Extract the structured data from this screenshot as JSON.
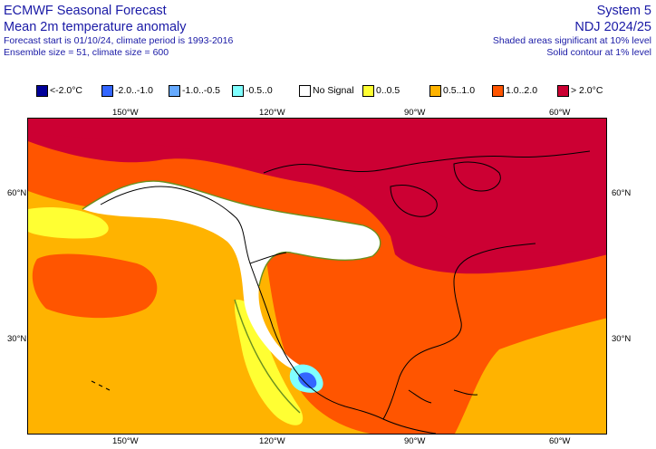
{
  "header": {
    "title": "ECMWF Seasonal Forecast",
    "subtitle": "Mean 2m temperature anomaly",
    "info_line1": "Forecast start is 01/10/24, climate period is 1993-2016",
    "info_line2": "Ensemble size = 51, climate size = 600",
    "system": "System 5",
    "season": "NDJ 2024/25",
    "sig_note1": "Shaded areas significant at 10% level",
    "sig_note2": "Solid contour at 1% level"
  },
  "legend": [
    {
      "label": "<-2.0°C",
      "color": "#000099"
    },
    {
      "label": "-2.0..-1.0",
      "color": "#3366ff"
    },
    {
      "label": "-1.0..-0.5",
      "color": "#66aaff"
    },
    {
      "label": "-0.5..0",
      "color": "#80ffff"
    },
    {
      "label": "No Signal",
      "color": "#ffffff"
    },
    {
      "label": "0..0.5",
      "color": "#ffff33"
    },
    {
      "label": "0.5..1.0",
      "color": "#ffb300"
    },
    {
      "label": "1.0..2.0",
      "color": "#ff5500"
    },
    {
      "label": "> 2.0°C",
      "color": "#cc0033"
    }
  ],
  "axes": {
    "lon_labels": [
      "150°W",
      "120°W",
      "90°W",
      "60°W"
    ],
    "lat_labels": [
      "60°N",
      "30°N"
    ]
  }
}
